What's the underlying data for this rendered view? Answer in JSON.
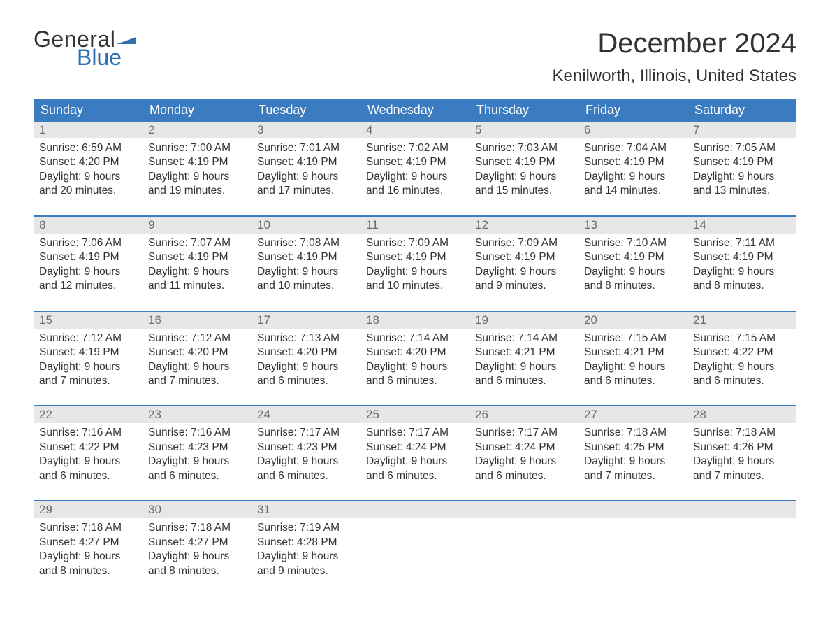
{
  "brand": {
    "word1": "General",
    "word2": "Blue",
    "text_color": "#333333",
    "accent_color": "#2f6fb0"
  },
  "title": "December 2024",
  "location": "Kenilworth, Illinois, United States",
  "calendar": {
    "type": "table",
    "header_bg": "#3b7bbf",
    "header_fg": "#ffffff",
    "daynum_bg": "#e7e7e7",
    "daynum_fg": "#6a6a6a",
    "week_border": "#3b7bbf",
    "body_fg": "#333333",
    "background_color": "#ffffff",
    "font_family": "Arial",
    "header_fontsize": 18,
    "body_fontsize": 15.5,
    "columns": [
      "Sunday",
      "Monday",
      "Tuesday",
      "Wednesday",
      "Thursday",
      "Friday",
      "Saturday"
    ],
    "weeks": [
      [
        {
          "n": "1",
          "sr": "Sunrise: 6:59 AM",
          "ss": "Sunset: 4:20 PM",
          "d1": "Daylight: 9 hours",
          "d2": "and 20 minutes."
        },
        {
          "n": "2",
          "sr": "Sunrise: 7:00 AM",
          "ss": "Sunset: 4:19 PM",
          "d1": "Daylight: 9 hours",
          "d2": "and 19 minutes."
        },
        {
          "n": "3",
          "sr": "Sunrise: 7:01 AM",
          "ss": "Sunset: 4:19 PM",
          "d1": "Daylight: 9 hours",
          "d2": "and 17 minutes."
        },
        {
          "n": "4",
          "sr": "Sunrise: 7:02 AM",
          "ss": "Sunset: 4:19 PM",
          "d1": "Daylight: 9 hours",
          "d2": "and 16 minutes."
        },
        {
          "n": "5",
          "sr": "Sunrise: 7:03 AM",
          "ss": "Sunset: 4:19 PM",
          "d1": "Daylight: 9 hours",
          "d2": "and 15 minutes."
        },
        {
          "n": "6",
          "sr": "Sunrise: 7:04 AM",
          "ss": "Sunset: 4:19 PM",
          "d1": "Daylight: 9 hours",
          "d2": "and 14 minutes."
        },
        {
          "n": "7",
          "sr": "Sunrise: 7:05 AM",
          "ss": "Sunset: 4:19 PM",
          "d1": "Daylight: 9 hours",
          "d2": "and 13 minutes."
        }
      ],
      [
        {
          "n": "8",
          "sr": "Sunrise: 7:06 AM",
          "ss": "Sunset: 4:19 PM",
          "d1": "Daylight: 9 hours",
          "d2": "and 12 minutes."
        },
        {
          "n": "9",
          "sr": "Sunrise: 7:07 AM",
          "ss": "Sunset: 4:19 PM",
          "d1": "Daylight: 9 hours",
          "d2": "and 11 minutes."
        },
        {
          "n": "10",
          "sr": "Sunrise: 7:08 AM",
          "ss": "Sunset: 4:19 PM",
          "d1": "Daylight: 9 hours",
          "d2": "and 10 minutes."
        },
        {
          "n": "11",
          "sr": "Sunrise: 7:09 AM",
          "ss": "Sunset: 4:19 PM",
          "d1": "Daylight: 9 hours",
          "d2": "and 10 minutes."
        },
        {
          "n": "12",
          "sr": "Sunrise: 7:09 AM",
          "ss": "Sunset: 4:19 PM",
          "d1": "Daylight: 9 hours",
          "d2": "and 9 minutes."
        },
        {
          "n": "13",
          "sr": "Sunrise: 7:10 AM",
          "ss": "Sunset: 4:19 PM",
          "d1": "Daylight: 9 hours",
          "d2": "and 8 minutes."
        },
        {
          "n": "14",
          "sr": "Sunrise: 7:11 AM",
          "ss": "Sunset: 4:19 PM",
          "d1": "Daylight: 9 hours",
          "d2": "and 8 minutes."
        }
      ],
      [
        {
          "n": "15",
          "sr": "Sunrise: 7:12 AM",
          "ss": "Sunset: 4:19 PM",
          "d1": "Daylight: 9 hours",
          "d2": "and 7 minutes."
        },
        {
          "n": "16",
          "sr": "Sunrise: 7:12 AM",
          "ss": "Sunset: 4:20 PM",
          "d1": "Daylight: 9 hours",
          "d2": "and 7 minutes."
        },
        {
          "n": "17",
          "sr": "Sunrise: 7:13 AM",
          "ss": "Sunset: 4:20 PM",
          "d1": "Daylight: 9 hours",
          "d2": "and 6 minutes."
        },
        {
          "n": "18",
          "sr": "Sunrise: 7:14 AM",
          "ss": "Sunset: 4:20 PM",
          "d1": "Daylight: 9 hours",
          "d2": "and 6 minutes."
        },
        {
          "n": "19",
          "sr": "Sunrise: 7:14 AM",
          "ss": "Sunset: 4:21 PM",
          "d1": "Daylight: 9 hours",
          "d2": "and 6 minutes."
        },
        {
          "n": "20",
          "sr": "Sunrise: 7:15 AM",
          "ss": "Sunset: 4:21 PM",
          "d1": "Daylight: 9 hours",
          "d2": "and 6 minutes."
        },
        {
          "n": "21",
          "sr": "Sunrise: 7:15 AM",
          "ss": "Sunset: 4:22 PM",
          "d1": "Daylight: 9 hours",
          "d2": "and 6 minutes."
        }
      ],
      [
        {
          "n": "22",
          "sr": "Sunrise: 7:16 AM",
          "ss": "Sunset: 4:22 PM",
          "d1": "Daylight: 9 hours",
          "d2": "and 6 minutes."
        },
        {
          "n": "23",
          "sr": "Sunrise: 7:16 AM",
          "ss": "Sunset: 4:23 PM",
          "d1": "Daylight: 9 hours",
          "d2": "and 6 minutes."
        },
        {
          "n": "24",
          "sr": "Sunrise: 7:17 AM",
          "ss": "Sunset: 4:23 PM",
          "d1": "Daylight: 9 hours",
          "d2": "and 6 minutes."
        },
        {
          "n": "25",
          "sr": "Sunrise: 7:17 AM",
          "ss": "Sunset: 4:24 PM",
          "d1": "Daylight: 9 hours",
          "d2": "and 6 minutes."
        },
        {
          "n": "26",
          "sr": "Sunrise: 7:17 AM",
          "ss": "Sunset: 4:24 PM",
          "d1": "Daylight: 9 hours",
          "d2": "and 6 minutes."
        },
        {
          "n": "27",
          "sr": "Sunrise: 7:18 AM",
          "ss": "Sunset: 4:25 PM",
          "d1": "Daylight: 9 hours",
          "d2": "and 7 minutes."
        },
        {
          "n": "28",
          "sr": "Sunrise: 7:18 AM",
          "ss": "Sunset: 4:26 PM",
          "d1": "Daylight: 9 hours",
          "d2": "and 7 minutes."
        }
      ],
      [
        {
          "n": "29",
          "sr": "Sunrise: 7:18 AM",
          "ss": "Sunset: 4:27 PM",
          "d1": "Daylight: 9 hours",
          "d2": "and 8 minutes."
        },
        {
          "n": "30",
          "sr": "Sunrise: 7:18 AM",
          "ss": "Sunset: 4:27 PM",
          "d1": "Daylight: 9 hours",
          "d2": "and 8 minutes."
        },
        {
          "n": "31",
          "sr": "Sunrise: 7:19 AM",
          "ss": "Sunset: 4:28 PM",
          "d1": "Daylight: 9 hours",
          "d2": "and 9 minutes."
        },
        null,
        null,
        null,
        null
      ]
    ]
  }
}
